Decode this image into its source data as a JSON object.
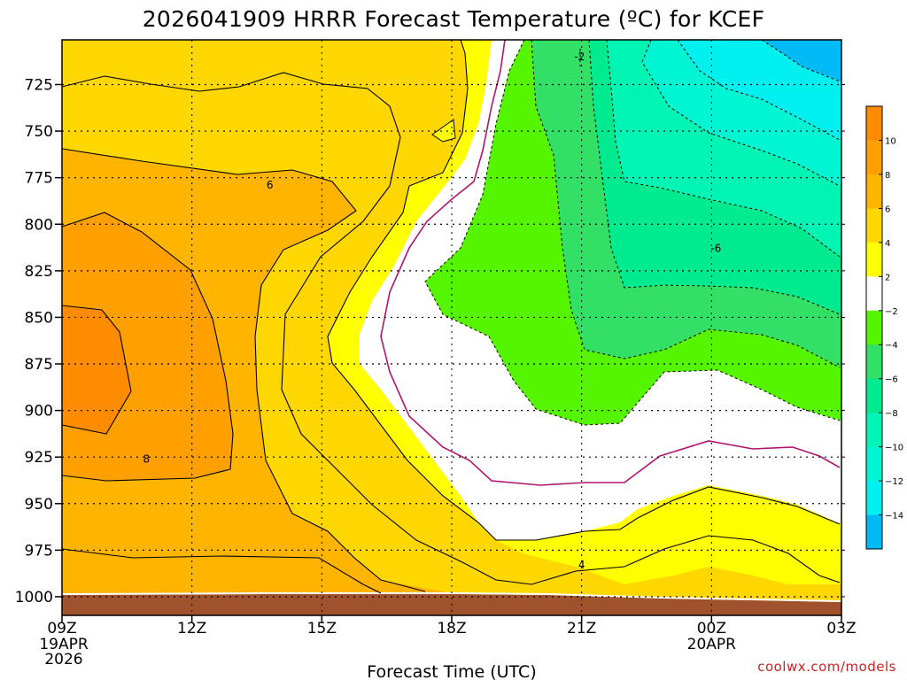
{
  "chart_data": {
    "type": "heatmap",
    "title": "2026041909 HRRR Forecast Temperature (ºC) for KCEF",
    "xlabel": "Forecast Time (UTC)",
    "ylabel": "",
    "x_ticks": [
      {
        "label": "09Z",
        "sub": [
          "19APR",
          "2026"
        ],
        "hour": 0
      },
      {
        "label": "12Z",
        "sub": [],
        "hour": 3
      },
      {
        "label": "15Z",
        "sub": [],
        "hour": 6
      },
      {
        "label": "18Z",
        "sub": [],
        "hour": 9
      },
      {
        "label": "21Z",
        "sub": [],
        "hour": 12
      },
      {
        "label": "00Z",
        "sub": [
          "20APR"
        ],
        "hour": 15
      },
      {
        "label": "03Z",
        "sub": [],
        "hour": 18
      }
    ],
    "xlim": [
      0,
      18
    ],
    "y_ticks": [
      {
        "label": "725",
        "p": 725
      },
      {
        "label": "750",
        "p": 750
      },
      {
        "label": "775",
        "p": 775
      },
      {
        "label": "800",
        "p": 800
      },
      {
        "label": "825",
        "p": 825
      },
      {
        "label": "850",
        "p": 850
      },
      {
        "label": "875",
        "p": 875
      },
      {
        "label": "900",
        "p": 900
      },
      {
        "label": "925",
        "p": 925
      },
      {
        "label": "950",
        "p": 950
      },
      {
        "label": "975",
        "p": 975
      },
      {
        "label": "1000",
        "p": 1000
      }
    ],
    "ylim": [
      701,
      1010
    ],
    "grid": true,
    "colorbar": {
      "labels": [
        "10",
        "8",
        "6",
        "4",
        "2",
        "−2",
        "−4",
        "−6",
        "−8",
        "−10",
        "−12",
        "−14"
      ],
      "levels": [
        {
          "from": 10,
          "to": 12,
          "color": "#ff8c00"
        },
        {
          "from": 8,
          "to": 10,
          "color": "#ffa000"
        },
        {
          "from": 6,
          "to": 8,
          "color": "#ffb400"
        },
        {
          "from": 4,
          "to": 6,
          "color": "#ffd700"
        },
        {
          "from": 2,
          "to": 4,
          "color": "#ffff00"
        },
        {
          "from": -2,
          "to": 2,
          "color": "#ffffff"
        },
        {
          "from": -4,
          "to": -2,
          "color": "#55f500"
        },
        {
          "from": -6,
          "to": -4,
          "color": "#33e066"
        },
        {
          "from": -8,
          "to": -6,
          "color": "#00eb8f"
        },
        {
          "from": -10,
          "to": -8,
          "color": "#00f5b4"
        },
        {
          "from": -12,
          "to": -10,
          "color": "#00f5d2"
        },
        {
          "from": -14,
          "to": -12,
          "color": "#00f0f0"
        },
        {
          "from": -16,
          "to": -14,
          "color": "#00baf5"
        }
      ]
    },
    "contour_labels": [
      {
        "text": "6",
        "hour": 4.8,
        "p": 779
      },
      {
        "text": "8",
        "hour": 1.95,
        "p": 926
      },
      {
        "text": "4",
        "hour": 12.0,
        "p": 983
      },
      {
        "text": "-6",
        "hour": 15.1,
        "p": 813
      },
      {
        "text": "-2",
        "hour": 11.95,
        "p": 710
      }
    ],
    "terrain_color": "#a0522d",
    "colors": {
      "warm_10": "#ff8c00",
      "warm_8": "#ffa000",
      "warm_6": "#ffb400",
      "warm_4": "#ffd700",
      "warm_2": "#ffff00",
      "zero_band": "#ffffff",
      "freezing_line": "#b0146e"
    }
  },
  "credit": "coolwx.com/models"
}
